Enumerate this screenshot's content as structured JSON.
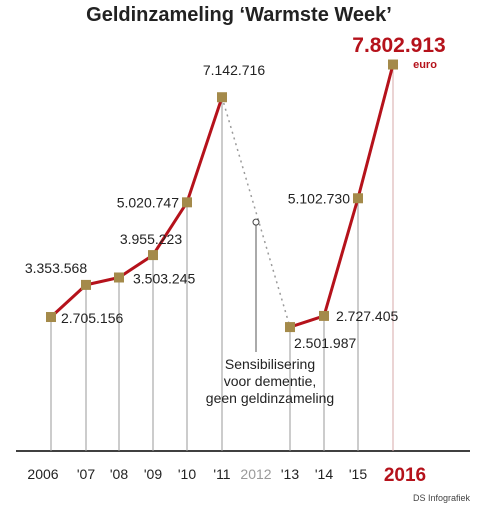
{
  "chart_data": {
    "type": "line",
    "title": "Geldinzameling ‘Warmste Week’",
    "categories": [
      "2006",
      "'07",
      "'08",
      "'09",
      "'10",
      "'11",
      "2012",
      "'13",
      "'14",
      "'15",
      "2016"
    ],
    "values": [
      2705156,
      3353568,
      3503245,
      3955223,
      5020747,
      7142716,
      null,
      2501987,
      2727405,
      5102730,
      7802913
    ],
    "value_labels": [
      "2.705.156",
      "3.353.568",
      "3.503.245",
      "3.955.223",
      "5.020.747",
      "7.142.716",
      "",
      "2.501.987",
      "2.727.405",
      "5.102.730",
      "7.802.913"
    ],
    "highlight_unit": "euro",
    "annotation": [
      "Sensibilisering",
      "voor dementie,",
      "geen geldinzameling"
    ],
    "ylim": [
      0,
      8500000
    ],
    "colors": {
      "line": "#b5121b",
      "marker": "#a48a4a",
      "axis": "#000000",
      "drop": "#9a9a9a",
      "muted_label": "#9a9a9a"
    }
  },
  "credit": "DS Infografiek"
}
